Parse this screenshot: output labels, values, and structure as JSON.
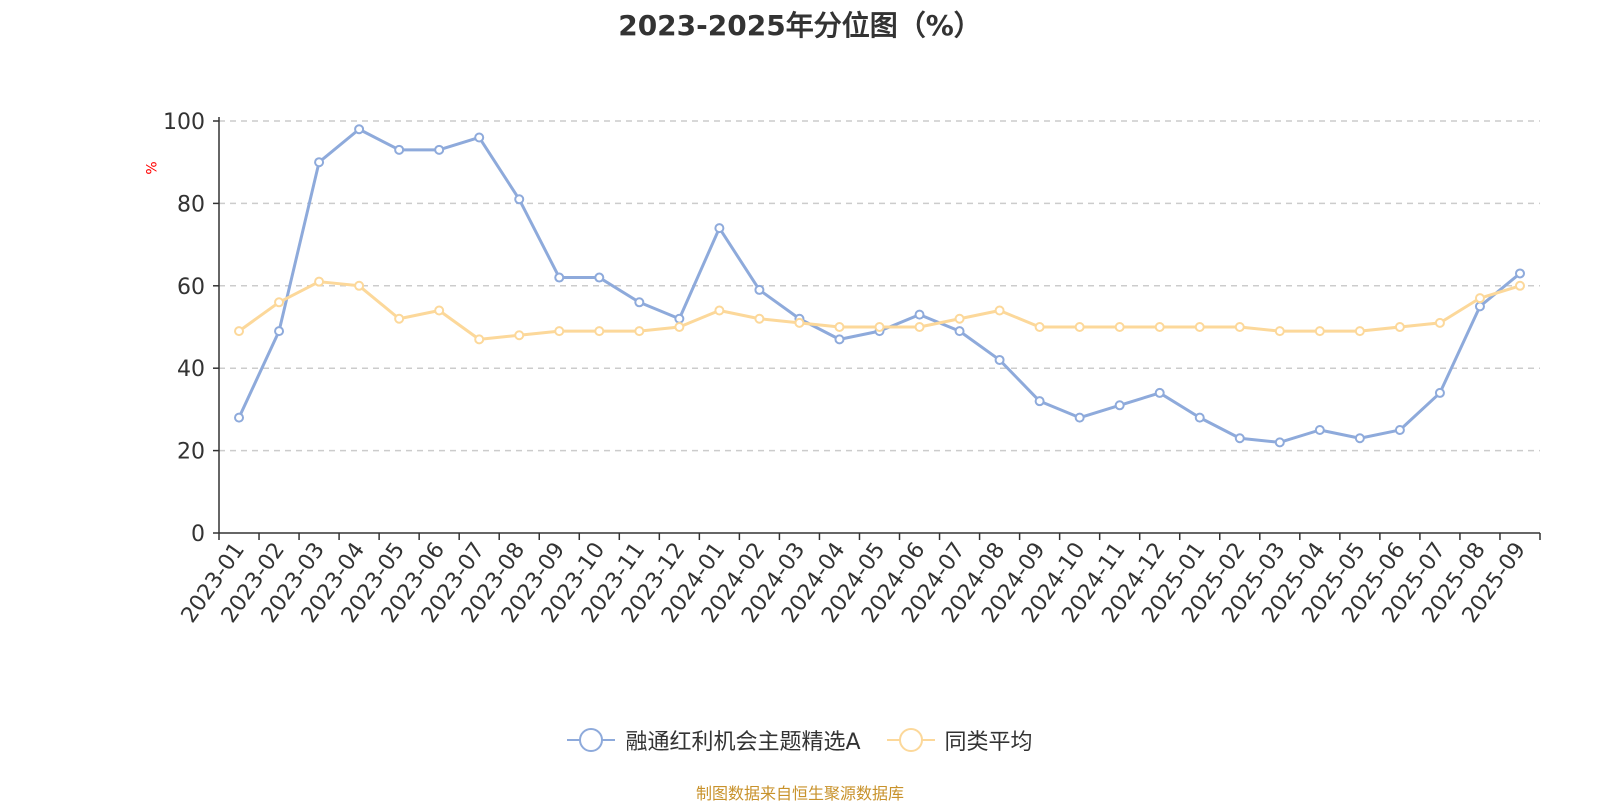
{
  "chart_data": {
    "type": "line",
    "title": "2023-2025年分位图（%）",
    "ylabel": "%",
    "xlabel": "",
    "ylim": [
      0,
      100
    ],
    "yticks": [
      0,
      20,
      40,
      60,
      80,
      100
    ],
    "grid": true,
    "legend_position": "bottom",
    "x": [
      "2023-01",
      "2023-02",
      "2023-03",
      "2023-04",
      "2023-05",
      "2023-06",
      "2023-07",
      "2023-08",
      "2023-09",
      "2023-10",
      "2023-11",
      "2023-12",
      "2024-01",
      "2024-02",
      "2024-03",
      "2024-04",
      "2024-05",
      "2024-06",
      "2024-07",
      "2024-08",
      "2024-09",
      "2024-10",
      "2024-11",
      "2024-12",
      "2025-01",
      "2025-02",
      "2025-03",
      "2025-04",
      "2025-05",
      "2025-06",
      "2025-07",
      "2025-08",
      "2025-09"
    ],
    "series": [
      {
        "name": "融通红利机会主题精选A",
        "color": "#8eaadb",
        "values": [
          28,
          49,
          90,
          98,
          93,
          93,
          96,
          81,
          62,
          62,
          56,
          52,
          74,
          59,
          52,
          47,
          49,
          53,
          49,
          42,
          32,
          28,
          31,
          34,
          28,
          23,
          22,
          25,
          23,
          25,
          34,
          55,
          63
        ]
      },
      {
        "name": "同类平均",
        "color": "#fcd89a",
        "values": [
          49,
          56,
          61,
          60,
          52,
          54,
          47,
          48,
          49,
          49,
          49,
          50,
          54,
          52,
          51,
          50,
          50,
          50,
          52,
          54,
          50,
          50,
          50,
          50,
          50,
          50,
          49,
          49,
          49,
          50,
          51,
          57,
          60
        ]
      }
    ]
  },
  "footer": {
    "source_text": "制图数据来自恒生聚源数据库",
    "source_color": "#c8922b"
  }
}
